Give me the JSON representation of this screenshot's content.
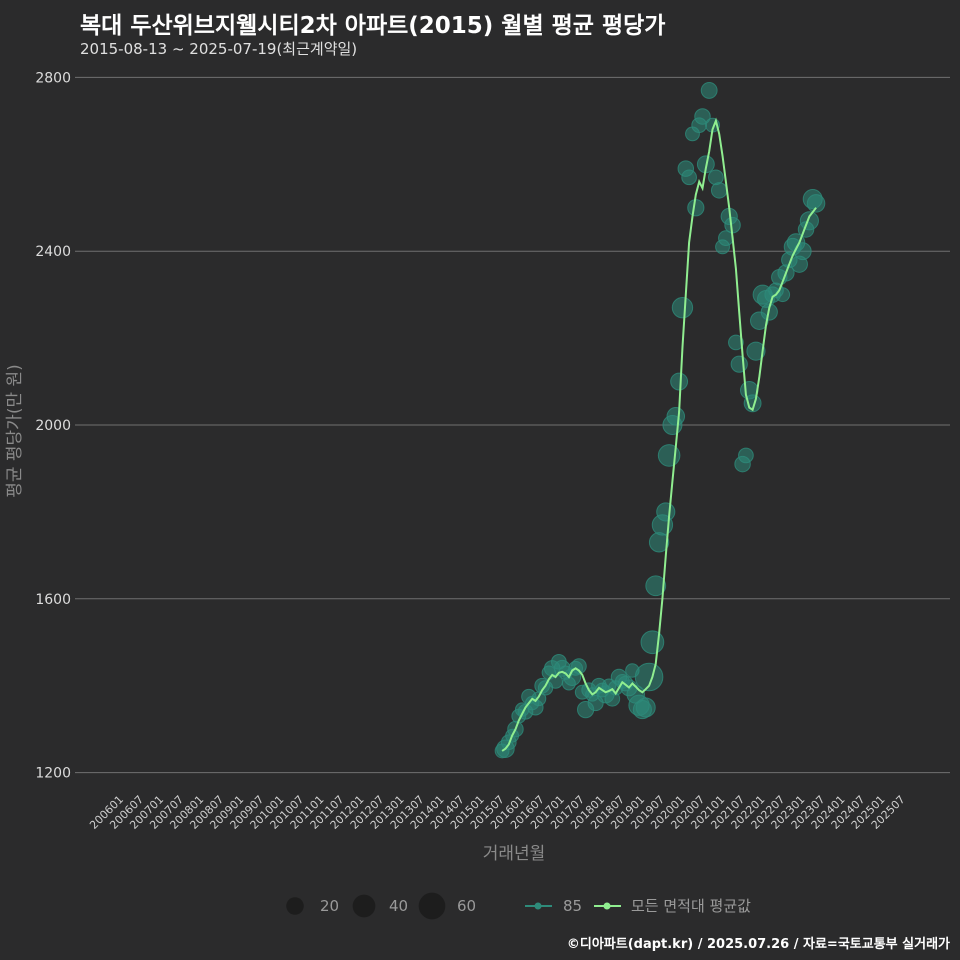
{
  "title": "복대 두산위브지웰시티2차 아파트(2015) 월별 평균 평당가",
  "subtitle": "2015-08-13 ~ 2025-07-19(최근계약일)",
  "footer": "©디아파트(dapt.kr) / 2025.07.26 / 자료=국토교통부 실거래가",
  "colors": {
    "background": "#2b2b2c",
    "line": "#90ee90",
    "points": "#2e8b7a",
    "grid": "#707070"
  },
  "chart_data": {
    "type": "scatter+line",
    "title": "복대 두산위브지웰시티2차 아파트(2015) 월별 평균 평당가",
    "xlabel": "거래년월",
    "ylabel": "평균 평당가(만 원)",
    "ylim": [
      1160,
      2840
    ],
    "yticks": [
      1200,
      1600,
      2000,
      2400,
      2800
    ],
    "xticks": [
      "200601",
      "200607",
      "200701",
      "200707",
      "200801",
      "200807",
      "200901",
      "200907",
      "201001",
      "201007",
      "201101",
      "201107",
      "201201",
      "201207",
      "201301",
      "201307",
      "201401",
      "201407",
      "201501",
      "201507",
      "201601",
      "201607",
      "201701",
      "201707",
      "201801",
      "201807",
      "201901",
      "201907",
      "202001",
      "202007",
      "202101",
      "202107",
      "202201",
      "202207",
      "202301",
      "202307",
      "202401",
      "202407",
      "202501",
      "202507"
    ],
    "legend": {
      "size_title": "",
      "sizes": [
        {
          "label": "20",
          "value": 20
        },
        {
          "label": "40",
          "value": 40
        },
        {
          "label": "60",
          "value": 60
        }
      ],
      "series": [
        {
          "label": "85",
          "kind": "points"
        },
        {
          "label": "모든 면적대 평균값",
          "kind": "line"
        }
      ]
    },
    "average_line": [
      [
        "201508",
        1250
      ],
      [
        "201509",
        1255
      ],
      [
        "201510",
        1265
      ],
      [
        "201511",
        1285
      ],
      [
        "201512",
        1300
      ],
      [
        "201601",
        1320
      ],
      [
        "201602",
        1335
      ],
      [
        "201603",
        1350
      ],
      [
        "201604",
        1360
      ],
      [
        "201605",
        1370
      ],
      [
        "201606",
        1365
      ],
      [
        "201607",
        1375
      ],
      [
        "201608",
        1390
      ],
      [
        "201609",
        1400
      ],
      [
        "201610",
        1415
      ],
      [
        "201611",
        1425
      ],
      [
        "201612",
        1420
      ],
      [
        "201701",
        1430
      ],
      [
        "201702",
        1432
      ],
      [
        "201703",
        1428
      ],
      [
        "201704",
        1420
      ],
      [
        "201705",
        1435
      ],
      [
        "201706",
        1440
      ],
      [
        "201707",
        1435
      ],
      [
        "201708",
        1425
      ],
      [
        "201709",
        1405
      ],
      [
        "201710",
        1390
      ],
      [
        "201711",
        1380
      ],
      [
        "201712",
        1385
      ],
      [
        "201801",
        1395
      ],
      [
        "201802",
        1390
      ],
      [
        "201803",
        1385
      ],
      [
        "201804",
        1388
      ],
      [
        "201805",
        1392
      ],
      [
        "201806",
        1382
      ],
      [
        "201807",
        1395
      ],
      [
        "201808",
        1408
      ],
      [
        "201809",
        1402
      ],
      [
        "201810",
        1396
      ],
      [
        "201811",
        1405
      ],
      [
        "201812",
        1398
      ],
      [
        "201901",
        1390
      ],
      [
        "201902",
        1385
      ],
      [
        "201903",
        1392
      ],
      [
        "201904",
        1400
      ],
      [
        "201905",
        1420
      ],
      [
        "201906",
        1450
      ],
      [
        "201907",
        1520
      ],
      [
        "201908",
        1600
      ],
      [
        "201909",
        1700
      ],
      [
        "201910",
        1790
      ],
      [
        "201911",
        1870
      ],
      [
        "201912",
        1950
      ],
      [
        "202001",
        2030
      ],
      [
        "202002",
        2180
      ],
      [
        "202003",
        2300
      ],
      [
        "202004",
        2420
      ],
      [
        "202005",
        2480
      ],
      [
        "202006",
        2530
      ],
      [
        "202007",
        2560
      ],
      [
        "202008",
        2545
      ],
      [
        "202009",
        2590
      ],
      [
        "202010",
        2630
      ],
      [
        "202011",
        2680
      ],
      [
        "202012",
        2700
      ],
      [
        "202101",
        2670
      ],
      [
        "202102",
        2620
      ],
      [
        "202103",
        2560
      ],
      [
        "202104",
        2500
      ],
      [
        "202105",
        2430
      ],
      [
        "202106",
        2360
      ],
      [
        "202107",
        2260
      ],
      [
        "202108",
        2160
      ],
      [
        "202109",
        2070
      ],
      [
        "202110",
        2040
      ],
      [
        "202111",
        2035
      ],
      [
        "202112",
        2060
      ],
      [
        "202201",
        2110
      ],
      [
        "202202",
        2170
      ],
      [
        "202203",
        2230
      ],
      [
        "202204",
        2270
      ],
      [
        "202205",
        2295
      ],
      [
        "202206",
        2300
      ],
      [
        "202207",
        2310
      ],
      [
        "202208",
        2330
      ],
      [
        "202209",
        2350
      ],
      [
        "202210",
        2370
      ],
      [
        "202211",
        2390
      ],
      [
        "202212",
        2405
      ],
      [
        "202301",
        2420
      ],
      [
        "202302",
        2440
      ],
      [
        "202303",
        2460
      ],
      [
        "202304",
        2480
      ],
      [
        "202305",
        2490
      ],
      [
        "202306",
        2500
      ]
    ],
    "points": [
      [
        "201508",
        1250,
        10
      ],
      [
        "201509",
        1255,
        20
      ],
      [
        "201510",
        1270,
        12
      ],
      [
        "201511",
        1285,
        8
      ],
      [
        "201512",
        1300,
        14
      ],
      [
        "201601",
        1330,
        10
      ],
      [
        "201602",
        1345,
        9
      ],
      [
        "201603",
        1340,
        12
      ],
      [
        "201604",
        1375,
        11
      ],
      [
        "201605",
        1360,
        9
      ],
      [
        "201606",
        1350,
        13
      ],
      [
        "201607",
        1370,
        10
      ],
      [
        "201608",
        1400,
        12
      ],
      [
        "201609",
        1395,
        11
      ],
      [
        "201610",
        1430,
        9
      ],
      [
        "201611",
        1440,
        14
      ],
      [
        "201612",
        1410,
        10
      ],
      [
        "201701",
        1455,
        12
      ],
      [
        "201702",
        1440,
        15
      ],
      [
        "201703",
        1430,
        9
      ],
      [
        "201704",
        1405,
        8
      ],
      [
        "201705",
        1420,
        18
      ],
      [
        "201706",
        1440,
        10
      ],
      [
        "201707",
        1445,
        12
      ],
      [
        "201708",
        1385,
        10
      ],
      [
        "201709",
        1345,
        16
      ],
      [
        "201710",
        1390,
        11
      ],
      [
        "201711",
        1380,
        9
      ],
      [
        "201712",
        1360,
        13
      ],
      [
        "201801",
        1400,
        12
      ],
      [
        "201802",
        1390,
        10
      ],
      [
        "201803",
        1380,
        18
      ],
      [
        "201804",
        1400,
        9
      ],
      [
        "201805",
        1370,
        12
      ],
      [
        "201806",
        1395,
        11
      ],
      [
        "201807",
        1420,
        14
      ],
      [
        "201808",
        1410,
        10
      ],
      [
        "201809",
        1405,
        12
      ],
      [
        "201810",
        1395,
        15
      ],
      [
        "201811",
        1435,
        9
      ],
      [
        "201812",
        1380,
        20
      ],
      [
        "201901",
        1355,
        30
      ],
      [
        "201902",
        1345,
        22
      ],
      [
        "201903",
        1350,
        25
      ],
      [
        "201904",
        1420,
        65
      ],
      [
        "201905",
        1500,
        40
      ],
      [
        "201906",
        1630,
        28
      ],
      [
        "201907",
        1730,
        26
      ],
      [
        "201908",
        1770,
        30
      ],
      [
        "201909",
        1800,
        22
      ],
      [
        "201910",
        1930,
        35
      ],
      [
        "201911",
        2000,
        25
      ],
      [
        "201912",
        2020,
        20
      ],
      [
        "202001",
        2100,
        18
      ],
      [
        "202002",
        2270,
        30
      ],
      [
        "202003",
        2590,
        14
      ],
      [
        "202004",
        2570,
        12
      ],
      [
        "202005",
        2670,
        10
      ],
      [
        "202006",
        2500,
        16
      ],
      [
        "202007",
        2690,
        12
      ],
      [
        "202008",
        2710,
        14
      ],
      [
        "202009",
        2600,
        18
      ],
      [
        "202010",
        2770,
        15
      ],
      [
        "202011",
        2690,
        10
      ],
      [
        "202012",
        2570,
        12
      ],
      [
        "202101",
        2540,
        14
      ],
      [
        "202102",
        2410,
        10
      ],
      [
        "202103",
        2430,
        12
      ],
      [
        "202104",
        2480,
        16
      ],
      [
        "202105",
        2460,
        14
      ],
      [
        "202106",
        2190,
        12
      ],
      [
        "202107",
        2140,
        16
      ],
      [
        "202108",
        1910,
        14
      ],
      [
        "202109",
        1930,
        12
      ],
      [
        "202110",
        2080,
        20
      ],
      [
        "202111",
        2050,
        18
      ],
      [
        "202112",
        2170,
        22
      ],
      [
        "202201",
        2240,
        20
      ],
      [
        "202202",
        2300,
        25
      ],
      [
        "202203",
        2290,
        18
      ],
      [
        "202204",
        2260,
        16
      ],
      [
        "202205",
        2300,
        14
      ],
      [
        "202206",
        2310,
        12
      ],
      [
        "202207",
        2340,
        14
      ],
      [
        "202208",
        2300,
        10
      ],
      [
        "202209",
        2350,
        16
      ],
      [
        "202210",
        2380,
        14
      ],
      [
        "202211",
        2410,
        18
      ],
      [
        "202212",
        2420,
        20
      ],
      [
        "202301",
        2370,
        16
      ],
      [
        "202302",
        2400,
        18
      ],
      [
        "202303",
        2450,
        14
      ],
      [
        "202304",
        2470,
        22
      ],
      [
        "202305",
        2520,
        25
      ],
      [
        "202306",
        2510,
        20
      ]
    ]
  }
}
